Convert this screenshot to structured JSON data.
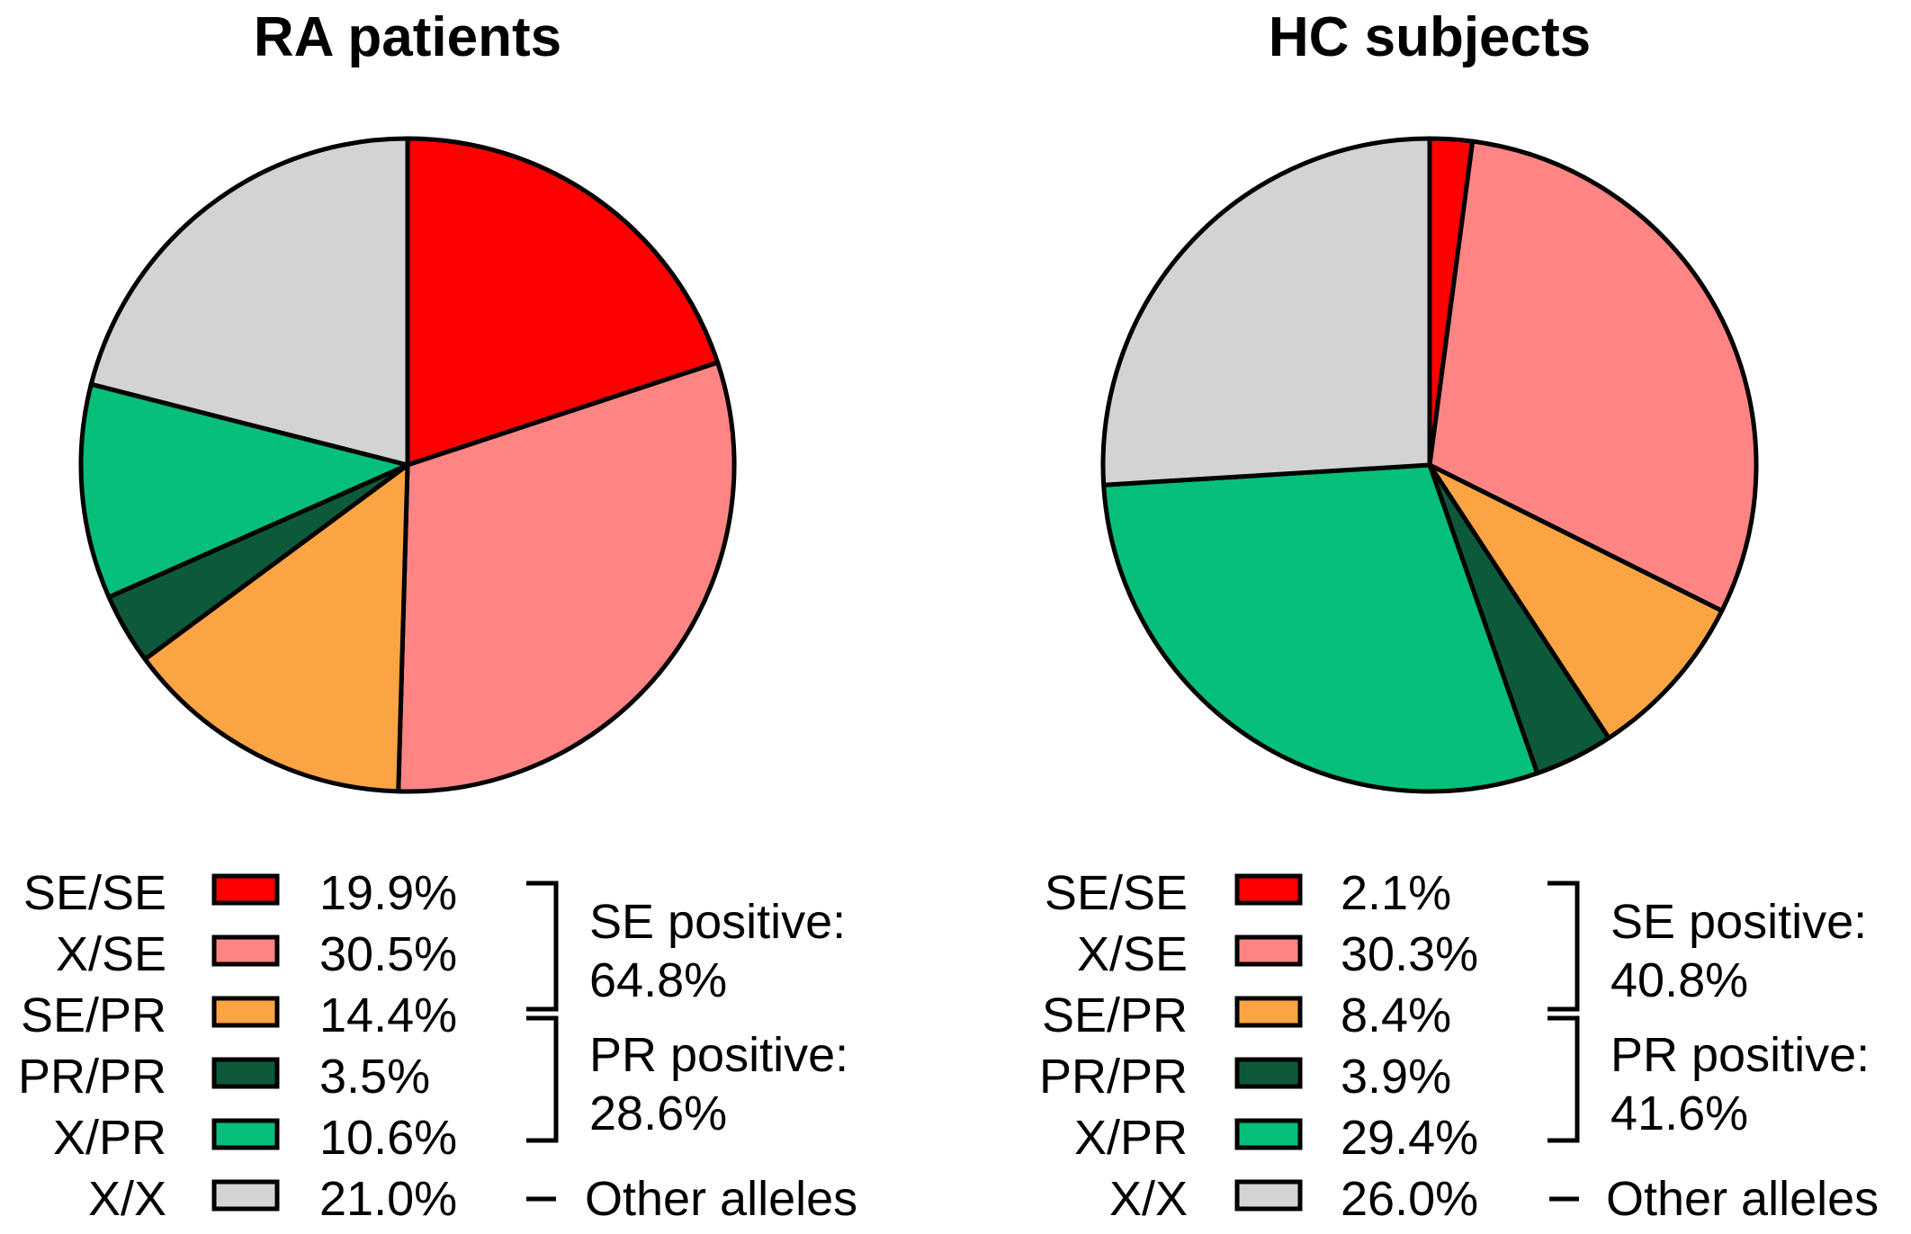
{
  "chart_data": [
    {
      "type": "pie",
      "title": "RA patients",
      "categories": [
        "SE/SE",
        "X/SE",
        "SE/PR",
        "PR/PR",
        "X/PR",
        "X/X"
      ],
      "values": [
        19.9,
        30.5,
        14.4,
        3.5,
        10.6,
        21.0
      ],
      "value_labels": [
        "19.9%",
        "30.5%",
        "14.4%",
        "3.5%",
        "10.6%",
        "21.0%"
      ],
      "colors": [
        "#ff0000",
        "#ff8585",
        "#fba444",
        "#0d5a3a",
        "#06bf7b",
        "#d3d3d3"
      ],
      "groups": [
        {
          "label_line1": "SE positive:",
          "label_line2": "64.8%",
          "members": [
            "SE/SE",
            "X/SE",
            "SE/PR"
          ]
        },
        {
          "label_line1": "PR positive:",
          "label_line2": "28.6%",
          "members": [
            "SE/PR",
            "PR/PR",
            "X/PR"
          ]
        },
        {
          "label_line1": "Other alleles",
          "label_line2": "",
          "members": [
            "X/X"
          ]
        }
      ]
    },
    {
      "type": "pie",
      "title": "HC subjects",
      "categories": [
        "SE/SE",
        "X/SE",
        "SE/PR",
        "PR/PR",
        "X/PR",
        "X/X"
      ],
      "values": [
        2.1,
        30.3,
        8.4,
        3.9,
        29.4,
        26.0
      ],
      "value_labels": [
        "2.1%",
        "30.3%",
        "8.4%",
        "3.9%",
        "29.4%",
        "26.0%"
      ],
      "colors": [
        "#ff0000",
        "#ff8585",
        "#fba444",
        "#0d5a3a",
        "#06bf7b",
        "#d3d3d3"
      ],
      "groups": [
        {
          "label_line1": "SE positive:",
          "label_line2": "40.8%",
          "members": [
            "SE/SE",
            "X/SE",
            "SE/PR"
          ]
        },
        {
          "label_line1": "PR positive:",
          "label_line2": "41.6%",
          "members": [
            "SE/PR",
            "PR/PR",
            "X/PR"
          ]
        },
        {
          "label_line1": "Other alleles",
          "label_line2": "",
          "members": [
            "X/X"
          ]
        }
      ]
    }
  ]
}
